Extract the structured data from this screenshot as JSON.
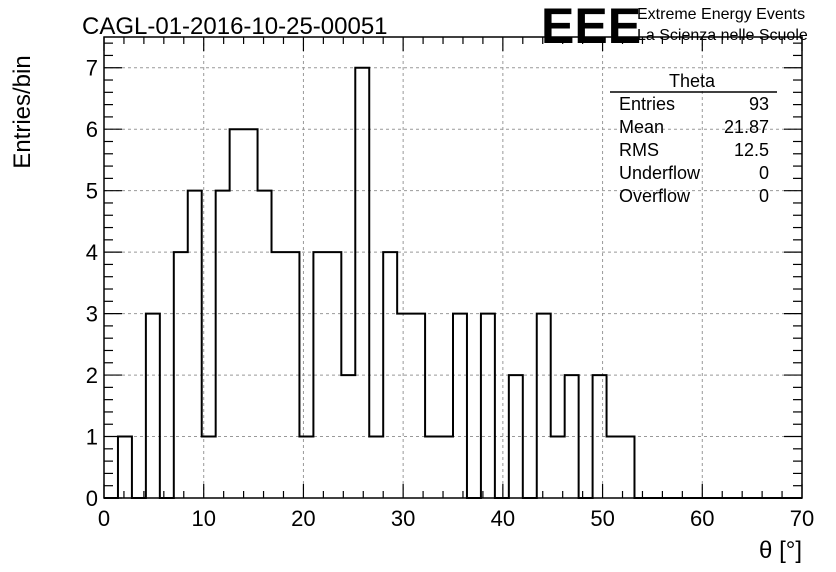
{
  "header": {
    "run_title": "CAGL-01-2016-10-25-00051",
    "logo_text": "EEE",
    "logo_line1": "Extreme Energy Events",
    "logo_line2": "La Scienza nelle Scuole",
    "logo_color": "#1a1aff"
  },
  "stats_box": {
    "title": "Theta",
    "rows": [
      {
        "label": "Entries",
        "value": "93"
      },
      {
        "label": "Mean",
        "value": "21.87"
      },
      {
        "label": "RMS",
        "value": "12.5"
      },
      {
        "label": "Underflow",
        "value": "0"
      },
      {
        "label": "Overflow",
        "value": "0"
      }
    ]
  },
  "chart_data": {
    "type": "bar",
    "style": "step-histogram",
    "xlabel": "θ [°]",
    "ylabel": "Entries/bin",
    "xlim": [
      0,
      70
    ],
    "ylim": [
      0,
      7.5
    ],
    "grid": true,
    "bin_width": 1.4,
    "x_ticks": [
      0,
      10,
      20,
      30,
      40,
      50,
      60,
      70
    ],
    "y_ticks": [
      0,
      1,
      2,
      3,
      4,
      5,
      6,
      7
    ],
    "values": [
      0,
      1,
      0,
      3,
      0,
      4,
      5,
      1,
      5,
      6,
      6,
      5,
      4,
      4,
      1,
      4,
      4,
      2,
      7,
      1,
      4,
      3,
      3,
      1,
      1,
      3,
      0,
      3,
      0,
      2,
      0,
      3,
      1,
      2,
      0,
      2,
      1,
      1,
      0,
      0,
      0,
      0,
      0,
      0,
      0,
      0,
      0,
      0,
      0,
      0
    ],
    "line_color": "#000000",
    "grid_color": "#999999"
  }
}
